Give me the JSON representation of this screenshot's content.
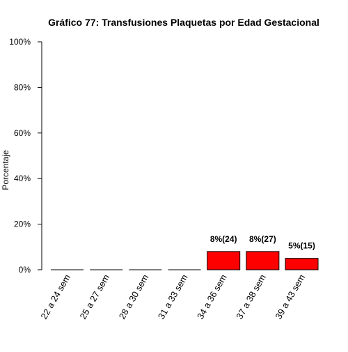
{
  "chart_data": {
    "type": "bar",
    "title": "Gráfico 77: Transfusiones Plaquetas por Edad Gestacional",
    "xlabel": "",
    "ylabel": "Porcentaje",
    "ylim": [
      0,
      100
    ],
    "y_ticks": [
      "0%",
      "20%",
      "40%",
      "60%",
      "80%",
      "100%"
    ],
    "y_tick_values": [
      0,
      20,
      40,
      60,
      80,
      100
    ],
    "categories": [
      "22 a 24 sem",
      "25 a 27 sem",
      "28 a 30 sem",
      "31 a 33 sem",
      "34 a 36 sem",
      "37 a 38 sem",
      "39 a 43 sem"
    ],
    "values": [
      0,
      0,
      0,
      0,
      8,
      8,
      5
    ],
    "data_labels": [
      "",
      "",
      "",
      "",
      "8%(24)",
      "8%(27)",
      "5%(15)"
    ],
    "bar_color": "#ff0000",
    "bar_border_color": "#000000",
    "grid": false,
    "legend": "none"
  }
}
